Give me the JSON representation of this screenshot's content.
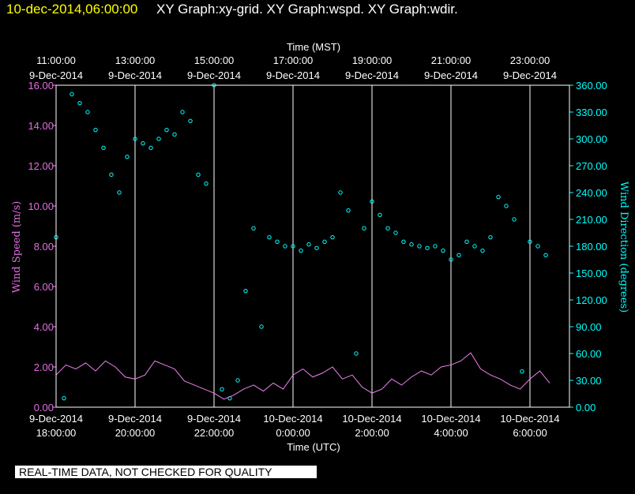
{
  "header": {
    "timestamp": "10-dec-2014,06:00:00",
    "titles": "XY Graph:xy-grid.  XY Graph:wspd.  XY Graph:wdir."
  },
  "notice": "REAL-TIME DATA, NOT CHECKED FOR QUALITY",
  "colors": {
    "speed": "#ee82ee",
    "direction": "#00ffff",
    "grid": "#ffffff",
    "background": "#000000",
    "timestamp": "#ffff00"
  },
  "chart_data": {
    "type": "line+scatter",
    "title": "XY Graph:xy-grid.  XY Graph:wspd.  XY Graph:wdir.",
    "x_range_hours_utc": [
      18,
      31
    ],
    "top_axis": {
      "label": "Time (MST)",
      "ticks": [
        {
          "x": 18,
          "line1": "11:00:00",
          "line2": "9-Dec-2014"
        },
        {
          "x": 20,
          "line1": "13:00:00",
          "line2": "9-Dec-2014"
        },
        {
          "x": 22,
          "line1": "15:00:00",
          "line2": "9-Dec-2014"
        },
        {
          "x": 24,
          "line1": "17:00:00",
          "line2": "9-Dec-2014"
        },
        {
          "x": 26,
          "line1": "19:00:00",
          "line2": "9-Dec-2014"
        },
        {
          "x": 28,
          "line1": "21:00:00",
          "line2": "9-Dec-2014"
        },
        {
          "x": 30,
          "line1": "23:00:00",
          "line2": "9-Dec-2014"
        }
      ]
    },
    "bottom_axis": {
      "label": "Time (UTC)",
      "ticks": [
        {
          "x": 18,
          "line1": "9-Dec-2014",
          "line2": "18:00:00"
        },
        {
          "x": 20,
          "line1": "9-Dec-2014",
          "line2": "20:00:00"
        },
        {
          "x": 22,
          "line1": "9-Dec-2014",
          "line2": "22:00:00"
        },
        {
          "x": 24,
          "line1": "10-Dec-2014",
          "line2": "0:00:00"
        },
        {
          "x": 26,
          "line1": "10-Dec-2014",
          "line2": "2:00:00"
        },
        {
          "x": 28,
          "line1": "10-Dec-2014",
          "line2": "4:00:00"
        },
        {
          "x": 30,
          "line1": "10-Dec-2014",
          "line2": "6:00:00"
        }
      ]
    },
    "left_axis": {
      "label": "Wind Speed (m/s)",
      "range": [
        0,
        16
      ],
      "ticks": [
        "0.00",
        "2.00",
        "4.00",
        "6.00",
        "8.00",
        "10.00",
        "12.00",
        "14.00",
        "16.00"
      ]
    },
    "right_axis": {
      "label": "Wind Direction (degrees)",
      "range": [
        0,
        360
      ],
      "ticks": [
        "0.00",
        "30.00",
        "60.00",
        "90.00",
        "120.00",
        "150.00",
        "180.00",
        "210.00",
        "240.00",
        "270.00",
        "300.00",
        "330.00",
        "360.00"
      ]
    },
    "grid": "vertical lines at major time ticks",
    "series": [
      {
        "name": "wspd",
        "style": "line",
        "axis": "left",
        "x": [
          18.0,
          18.25,
          18.5,
          18.75,
          19.0,
          19.25,
          19.5,
          19.75,
          20.0,
          20.25,
          20.5,
          20.75,
          21.0,
          21.25,
          21.5,
          21.75,
          22.0,
          22.25,
          22.5,
          22.75,
          23.0,
          23.25,
          23.5,
          23.75,
          24.0,
          24.25,
          24.5,
          24.75,
          25.0,
          25.25,
          25.5,
          25.75,
          26.0,
          26.25,
          26.5,
          26.75,
          27.0,
          27.25,
          27.5,
          27.75,
          28.0,
          28.25,
          28.5,
          28.75,
          29.0,
          29.25,
          29.5,
          29.75,
          30.0,
          30.25,
          30.5
        ],
        "y": [
          1.6,
          2.1,
          1.9,
          2.2,
          1.8,
          2.3,
          2.0,
          1.5,
          1.4,
          1.6,
          2.3,
          2.1,
          1.9,
          1.3,
          1.1,
          0.9,
          0.7,
          0.4,
          0.6,
          0.9,
          1.1,
          0.8,
          1.2,
          0.9,
          1.6,
          1.9,
          1.5,
          1.7,
          2.0,
          1.4,
          1.6,
          1.0,
          0.7,
          0.9,
          1.4,
          1.1,
          1.5,
          1.8,
          1.6,
          2.0,
          2.1,
          2.3,
          2.7,
          1.9,
          1.6,
          1.4,
          1.1,
          0.9,
          1.4,
          1.8,
          1.2
        ]
      },
      {
        "name": "wdir",
        "style": "scatter",
        "axis": "right",
        "x": [
          18.0,
          18.2,
          18.4,
          18.6,
          18.8,
          19.0,
          19.2,
          19.4,
          19.6,
          19.8,
          20.0,
          20.2,
          20.4,
          20.6,
          20.8,
          21.0,
          21.2,
          21.4,
          21.6,
          21.8,
          22.0,
          22.2,
          22.4,
          22.6,
          22.8,
          23.0,
          23.2,
          23.4,
          23.6,
          23.8,
          24.0,
          24.2,
          24.4,
          24.6,
          24.8,
          25.0,
          25.2,
          25.4,
          25.6,
          25.8,
          26.0,
          26.2,
          26.4,
          26.6,
          26.8,
          27.0,
          27.2,
          27.4,
          27.6,
          27.8,
          28.0,
          28.2,
          28.4,
          28.6,
          28.8,
          29.0,
          29.2,
          29.4,
          29.6,
          29.8,
          30.0,
          30.2,
          30.4
        ],
        "y": [
          190,
          10,
          350,
          340,
          330,
          310,
          290,
          260,
          240,
          280,
          300,
          295,
          290,
          300,
          310,
          305,
          330,
          320,
          260,
          250,
          360,
          20,
          10,
          30,
          130,
          200,
          90,
          190,
          185,
          180,
          180,
          175,
          182,
          178,
          185,
          190,
          240,
          220,
          60,
          200,
          230,
          215,
          200,
          195,
          185,
          182,
          180,
          178,
          180,
          175,
          165,
          170,
          185,
          180,
          175,
          190,
          235,
          225,
          210,
          40,
          185,
          180,
          170
        ]
      }
    ]
  }
}
